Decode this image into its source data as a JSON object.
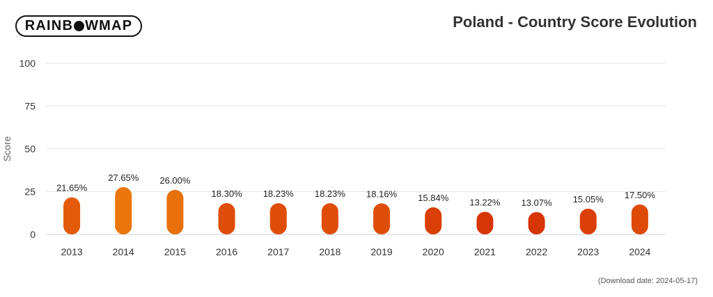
{
  "logo": {
    "part1": "RAINB",
    "part2": "WMAP"
  },
  "download_text": "(Download date: 2024-05-17)",
  "chart_data": {
    "type": "bar",
    "title": "Poland - Country Score Evolution",
    "xlabel": "",
    "ylabel": "Score",
    "ylim": [
      0,
      100
    ],
    "yticks": [
      "0",
      "25",
      "50",
      "75",
      "100"
    ],
    "grid": true,
    "categories": [
      "2013",
      "2014",
      "2015",
      "2016",
      "2017",
      "2018",
      "2019",
      "2020",
      "2021",
      "2022",
      "2023",
      "2024"
    ],
    "values": [
      21.65,
      27.65,
      26.0,
      18.3,
      18.23,
      18.23,
      18.16,
      15.84,
      13.22,
      13.07,
      15.05,
      17.5
    ],
    "value_labels": [
      "21.65%",
      "27.65%",
      "26.00%",
      "18.30%",
      "18.23%",
      "18.23%",
      "18.16%",
      "15.84%",
      "13.22%",
      "13.07%",
      "15.05%",
      "17.50%"
    ],
    "bar_colors": [
      "#e35a0a",
      "#ea760c",
      "#e8700b",
      "#df4e08",
      "#df4e08",
      "#df4e08",
      "#df4e08",
      "#da3f07",
      "#d63506",
      "#d63506",
      "#da3f07",
      "#dd4a08"
    ]
  }
}
